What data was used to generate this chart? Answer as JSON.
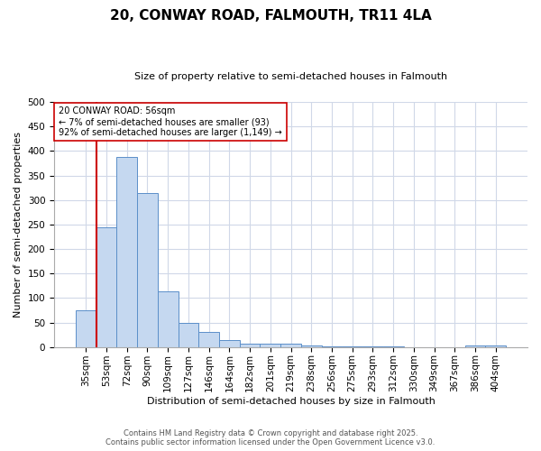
{
  "title_line1": "20, CONWAY ROAD, FALMOUTH, TR11 4LA",
  "title_line2": "Size of property relative to semi-detached houses in Falmouth",
  "xlabel": "Distribution of semi-detached houses by size in Falmouth",
  "ylabel": "Number of semi-detached properties",
  "categories": [
    "35sqm",
    "53sqm",
    "72sqm",
    "90sqm",
    "109sqm",
    "127sqm",
    "146sqm",
    "164sqm",
    "182sqm",
    "201sqm",
    "219sqm",
    "238sqm",
    "256sqm",
    "275sqm",
    "293sqm",
    "312sqm",
    "330sqm",
    "349sqm",
    "367sqm",
    "386sqm",
    "404sqm"
  ],
  "values": [
    75,
    244,
    387,
    314,
    114,
    50,
    30,
    14,
    6,
    7,
    6,
    3,
    2,
    1,
    1,
    1,
    0,
    0,
    0,
    3,
    4
  ],
  "bar_color": "#c5d8f0",
  "bar_edge_color": "#5b8fc9",
  "vline_x": 1,
  "vline_color": "#cc0000",
  "annotation_text": "20 CONWAY ROAD: 56sqm\n← 7% of semi-detached houses are smaller (93)\n92% of semi-detached houses are larger (1,149) →",
  "annotation_box_color": "#ffffff",
  "annotation_box_edge": "#cc0000",
  "ylim": [
    0,
    500
  ],
  "yticks": [
    0,
    50,
    100,
    150,
    200,
    250,
    300,
    350,
    400,
    450,
    500
  ],
  "footer_line1": "Contains HM Land Registry data © Crown copyright and database right 2025.",
  "footer_line2": "Contains public sector information licensed under the Open Government Licence v3.0.",
  "bg_color": "#ffffff",
  "plot_bg_color": "#ffffff",
  "grid_color": "#d0d8e8",
  "title_fontsize": 11,
  "subtitle_fontsize": 8,
  "xlabel_fontsize": 8,
  "ylabel_fontsize": 8,
  "tick_fontsize": 7.5,
  "footer_fontsize": 6,
  "annot_fontsize": 7
}
